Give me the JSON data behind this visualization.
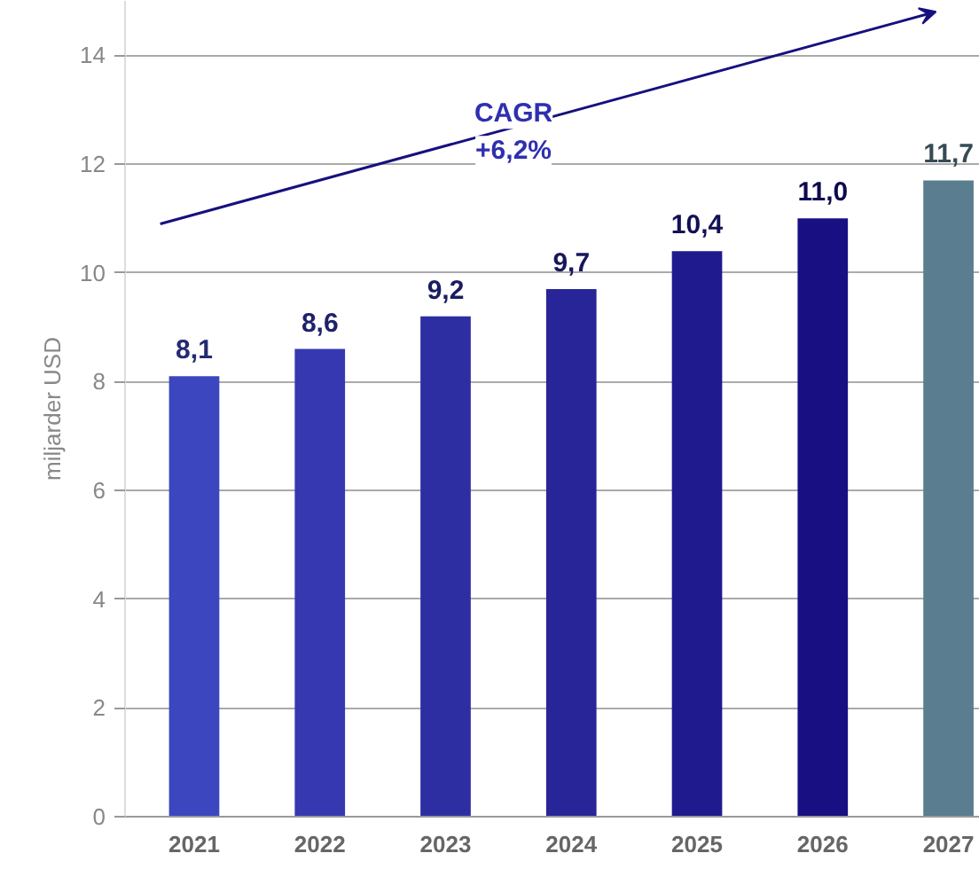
{
  "chart_data": {
    "type": "bar",
    "ylabel": "miljarder USD",
    "categories": [
      "2021",
      "2022",
      "2023",
      "2024",
      "2025",
      "2026",
      "2027"
    ],
    "values": [
      8.1,
      8.6,
      9.2,
      9.7,
      10.4,
      11.0,
      11.7
    ],
    "colors": [
      "#3c46bf",
      "#3538b0",
      "#2e2ea3",
      "#282598",
      "#1f1b8e",
      "#170f82",
      "#5a7d8f"
    ],
    "value_labels": [
      "8,1",
      "8,6",
      "9,2",
      "9,7",
      "10,4",
      "11,0",
      "11,7"
    ],
    "ylim": [
      0,
      15
    ],
    "yticks": [
      0,
      2,
      4,
      6,
      8,
      10,
      12,
      14
    ],
    "grid": "y",
    "annotations": [
      "CAGR\n+6,2%"
    ]
  }
}
